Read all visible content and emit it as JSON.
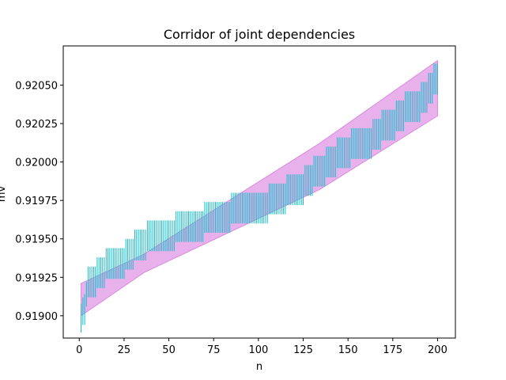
{
  "chart_data": {
    "type": "line",
    "title": "Corridor of joint dependencies",
    "xlabel": "n",
    "ylabel": "mv",
    "xlim": [
      -8.95,
      209.95
    ],
    "ylim": [
      0.918855,
      0.920755
    ],
    "xticks": [
      0,
      25,
      50,
      75,
      100,
      125,
      150,
      175,
      200
    ],
    "xtick_labels": [
      "0",
      "25",
      "50",
      "75",
      "100",
      "125",
      "150",
      "175",
      "200"
    ],
    "yticks": [
      0.919,
      0.91925,
      0.9195,
      0.91975,
      0.92,
      0.92025,
      0.9205
    ],
    "ytick_labels": [
      "0.91900",
      "0.91925",
      "0.91950",
      "0.91975",
      "0.92000",
      "0.92025",
      "0.92050"
    ],
    "grid": false,
    "legend": "none",
    "colors": {
      "corridor_fill": "#e8b1ec",
      "corridor_edge": "#d98bdd",
      "intervals": "#17bdc8"
    },
    "corridor": {
      "x": [
        1,
        36,
        134,
        200
      ],
      "upper": [
        0.91921,
        0.9194,
        0.92012,
        0.92066
      ],
      "lower": [
        0.919,
        0.91928,
        0.91982,
        0.9203
      ]
    },
    "intervals": {
      "n_range": [
        1,
        200
      ],
      "steps": [
        {
          "from": 1,
          "to": 1,
          "lo": 0.91889,
          "hi": 0.91908
        },
        {
          "from": 2,
          "to": 2,
          "lo": 0.91894,
          "hi": 0.91912
        },
        {
          "from": 3,
          "to": 3,
          "lo": 0.91894,
          "hi": 0.91914
        },
        {
          "from": 4,
          "to": 4,
          "lo": 0.91906,
          "hi": 0.91922
        },
        {
          "from": 5,
          "to": 9,
          "lo": 0.91912,
          "hi": 0.91932
        },
        {
          "from": 10,
          "to": 14,
          "lo": 0.91918,
          "hi": 0.91938
        },
        {
          "from": 15,
          "to": 25,
          "lo": 0.91924,
          "hi": 0.91944
        },
        {
          "from": 26,
          "to": 30,
          "lo": 0.9193,
          "hi": 0.9195
        },
        {
          "from": 31,
          "to": 37,
          "lo": 0.91936,
          "hi": 0.91956
        },
        {
          "from": 38,
          "to": 53,
          "lo": 0.91942,
          "hi": 0.91962
        },
        {
          "from": 54,
          "to": 69,
          "lo": 0.91948,
          "hi": 0.91968
        },
        {
          "from": 70,
          "to": 84,
          "lo": 0.91954,
          "hi": 0.91974
        },
        {
          "from": 85,
          "to": 105,
          "lo": 0.9196,
          "hi": 0.9198
        },
        {
          "from": 106,
          "to": 115,
          "lo": 0.91966,
          "hi": 0.91986
        },
        {
          "from": 116,
          "to": 125,
          "lo": 0.91972,
          "hi": 0.91992
        },
        {
          "from": 126,
          "to": 130,
          "lo": 0.91978,
          "hi": 0.91998
        },
        {
          "from": 131,
          "to": 137,
          "lo": 0.91984,
          "hi": 0.92004
        },
        {
          "from": 138,
          "to": 143,
          "lo": 0.9199,
          "hi": 0.9201
        },
        {
          "from": 144,
          "to": 151,
          "lo": 0.91996,
          "hi": 0.92016
        },
        {
          "from": 152,
          "to": 163,
          "lo": 0.92002,
          "hi": 0.92022
        },
        {
          "from": 164,
          "to": 168,
          "lo": 0.92008,
          "hi": 0.92028
        },
        {
          "from": 169,
          "to": 176,
          "lo": 0.92014,
          "hi": 0.92034
        },
        {
          "from": 177,
          "to": 181,
          "lo": 0.9202,
          "hi": 0.9204
        },
        {
          "from": 182,
          "to": 190,
          "lo": 0.92026,
          "hi": 0.92046
        },
        {
          "from": 191,
          "to": 194,
          "lo": 0.92032,
          "hi": 0.92052
        },
        {
          "from": 195,
          "to": 197,
          "lo": 0.92038,
          "hi": 0.92058
        },
        {
          "from": 198,
          "to": 200,
          "lo": 0.92044,
          "hi": 0.92064
        }
      ]
    }
  }
}
